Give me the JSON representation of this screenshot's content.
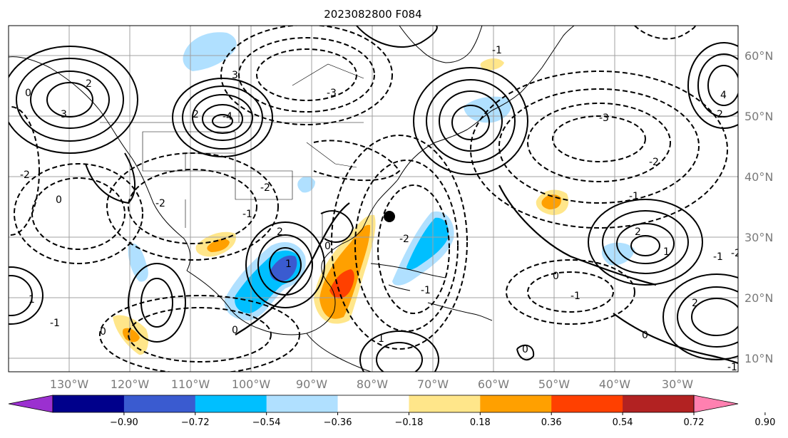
{
  "title": "2023082800 F084",
  "map": {
    "lon_ticks": [
      "130°W",
      "120°W",
      "110°W",
      "100°W",
      "90°W",
      "80°W",
      "70°W",
      "60°W",
      "50°W",
      "40°W",
      "30°W"
    ],
    "lat_ticks": [
      "60°N",
      "50°N",
      "40°N",
      "30°N",
      "20°N",
      "10°N"
    ],
    "colors": {
      "grid": "#a0a0a0",
      "coast": "#000000",
      "contour": "#000000"
    }
  },
  "colorbar": {
    "ticks": [
      "−0.90",
      "−0.72",
      "−0.54",
      "−0.36",
      "−0.18",
      "0.18",
      "0.36",
      "0.54",
      "0.72",
      "0.90"
    ],
    "colors": [
      "#9b30d0",
      "#00008b",
      "#3a5bd0",
      "#00bfff",
      "#b0e0ff",
      "#ffffff",
      "#ffe68a",
      "#ffa000",
      "#ff4000",
      "#b22222",
      "#ff80b0"
    ]
  },
  "contour_labels": [
    {
      "text": "0"
    },
    {
      "text": "3"
    },
    {
      "text": "2"
    },
    {
      "text": "-2"
    },
    {
      "text": "0"
    },
    {
      "text": "2"
    },
    {
      "text": "-4"
    },
    {
      "text": "3"
    },
    {
      "text": "-3"
    },
    {
      "text": "-2"
    },
    {
      "text": "-1"
    },
    {
      "text": "-2"
    },
    {
      "text": "2"
    },
    {
      "text": "1"
    },
    {
      "text": "0"
    },
    {
      "text": "-2"
    },
    {
      "text": "-3"
    },
    {
      "text": "-2"
    },
    {
      "text": "-1"
    },
    {
      "text": "0"
    },
    {
      "text": "-1"
    },
    {
      "text": "2"
    },
    {
      "text": "0"
    },
    {
      "text": "1"
    },
    {
      "text": "-1"
    },
    {
      "text": "2"
    },
    {
      "text": "1"
    },
    {
      "text": "0"
    },
    {
      "text": "-1"
    },
    {
      "text": "4"
    },
    {
      "text": "2"
    },
    {
      "text": "-1"
    },
    {
      "text": "1"
    },
    {
      "text": "0"
    },
    {
      "text": "0"
    },
    {
      "text": "-1"
    },
    {
      "text": "-2"
    },
    {
      "text": "-1"
    }
  ]
}
